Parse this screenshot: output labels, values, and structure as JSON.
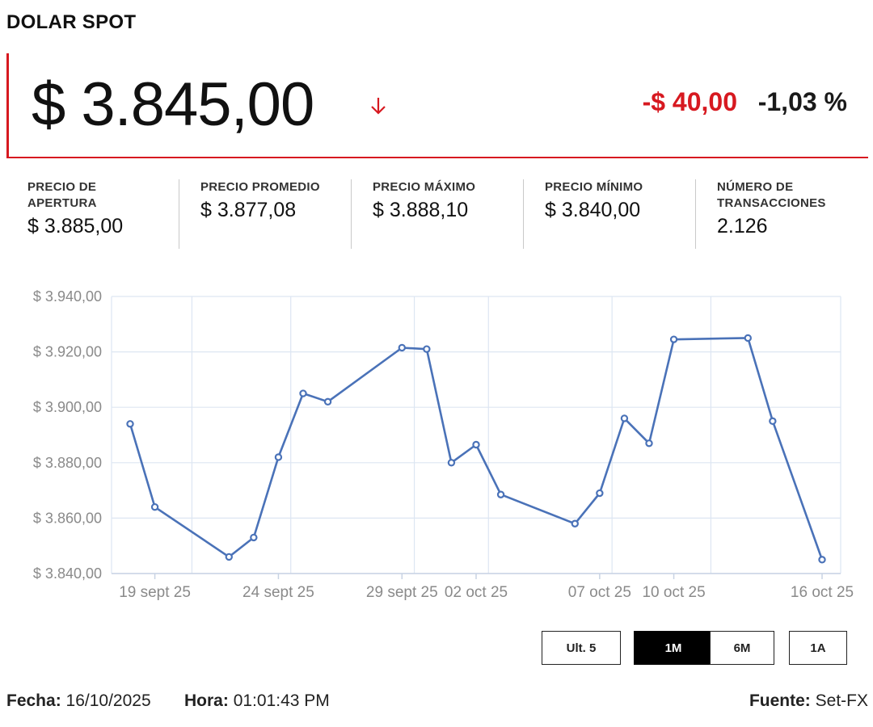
{
  "header": {
    "title": "DOLAR SPOT"
  },
  "quote": {
    "price": "$ 3.845,00",
    "change_abs": "-$ 40,00",
    "change_pct": "-1,03 %",
    "direction_icon": "arrow-down-icon",
    "down_color": "#d71920"
  },
  "stats": [
    {
      "label": "PRECIO DE APERTURA",
      "value": "$ 3.885,00"
    },
    {
      "label": "PRECIO PROMEDIO",
      "value": "$ 3.877,08"
    },
    {
      "label": "PRECIO MÁXIMO",
      "value": "$ 3.888,10"
    },
    {
      "label": "PRECIO MÍNIMO",
      "value": "$ 3.840,00"
    },
    {
      "label": "NÚMERO DE TRANSACCIONES",
      "value": "2.126"
    }
  ],
  "chart_data": {
    "type": "line",
    "x": [
      "2025-09-18",
      "2025-09-19",
      "2025-09-22",
      "2025-09-23",
      "2025-09-24",
      "2025-09-25",
      "2025-09-26",
      "2025-09-29",
      "2025-09-30",
      "2025-10-01",
      "2025-10-02",
      "2025-10-03",
      "2025-10-06",
      "2025-10-07",
      "2025-10-08",
      "2025-10-09",
      "2025-10-10",
      "2025-10-13",
      "2025-10-14",
      "2025-10-16"
    ],
    "series": [
      {
        "values": [
          3894,
          3864,
          3846,
          3853,
          3882,
          3905,
          3902,
          3921.5,
          3921,
          3880,
          3886.5,
          3868.5,
          3858,
          3869,
          3896,
          3887,
          3924.5,
          3925,
          3895,
          3845
        ]
      }
    ],
    "tick_labels": [
      "19 sept 25",
      "24 sept 25",
      "29 sept 25",
      "02 oct 25",
      "07 oct 25",
      "10 oct 25",
      "16 oct 25"
    ],
    "y_ticks": [
      "$ 3.840,00",
      "$ 3.860,00",
      "$ 3.880,00",
      "$ 3.900,00",
      "$ 3.920,00",
      "$ 3.940,00"
    ],
    "ylim": [
      3840,
      3940
    ],
    "grid": true,
    "line_color": "#4a72b8",
    "grid_color": "#dde6f2"
  },
  "range_buttons": [
    {
      "label": "Ult. 5",
      "active": false
    },
    {
      "label": "1M",
      "active": true
    },
    {
      "label": "6M",
      "active": false
    },
    {
      "label": "1A",
      "active": false
    }
  ],
  "footer": {
    "fecha_label": "Fecha:",
    "fecha_value": "16/10/2025",
    "hora_label": "Hora:",
    "hora_value": "01:01:43 PM",
    "fuente_label": "Fuente:",
    "fuente_value": "Set-FX"
  }
}
